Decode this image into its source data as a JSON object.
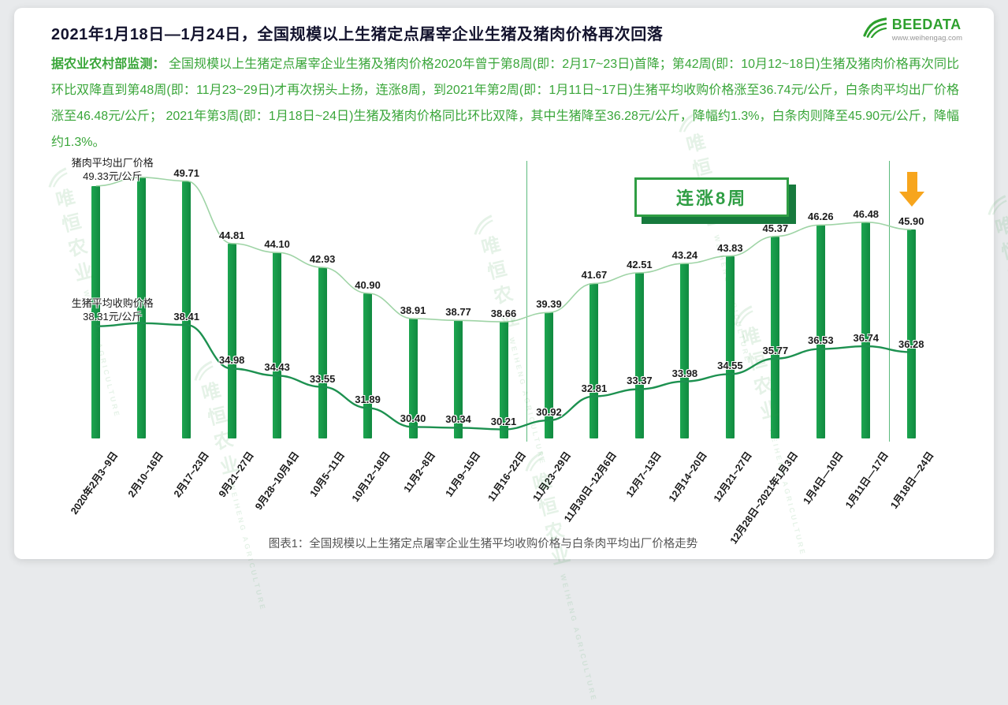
{
  "header": {
    "title": "2021年1月18日—1月24日，全国规模以上生猪定点屠宰企业生猪及猪肉价格再次回落",
    "logo": {
      "text": "BEEDATA",
      "url": "www.weihengag.com"
    }
  },
  "summary": {
    "lead": "据农业农村部监测： ",
    "body": "全国规模以上生猪定点屠宰企业生猪及猪肉价格2020年曾于第8周(即：2月17~23日)首降；第42周(即：10月12~18日)生猪及猪肉价格再次同比环比双降直到第48周(即：11月23~29日)才再次拐头上扬，连涨8周，到2021年第2周(即：1月11日~17日)生猪平均收购价格涨至36.74元/公斤，白条肉平均出厂价格涨至46.48元/公斤； 2021年第3周(即：1月18日~24日)生猪及猪肉价格同比环比双降，其中生猪降至36.28元/公斤，降幅约1.3%，白条肉则降至45.90元/公斤，降幅约1.3%。"
  },
  "watermark": {
    "cn": "唯恒农业",
    "en": "WEIHENG AGRICULTURE"
  },
  "colors": {
    "accent_green": "#2da02d",
    "text_green": "#3aa63a",
    "bar_green": "#169a47",
    "pork_line": "#9fd4a6",
    "hog_line": "#1d9150",
    "badge_green": "#2f9e44",
    "badge_shadow": "#177a3d",
    "arrow_orange": "#f7a51d",
    "title_dark": "#14142e"
  },
  "chart_data": {
    "type": "bar",
    "title": "全国规模以上生猪定点屠宰企业生猪平均收购价格与白条肉平均出厂价格走势",
    "caption": "图表1：全国规模以上生猪定点屠宰企业生猪平均收购价格与白条肉平均出厂价格走势",
    "annotation": "连涨8周",
    "unit": "元/公斤",
    "grid": false,
    "ylim": [
      29.5,
      50.8
    ],
    "xlabel_rotate_deg": -55,
    "rise_band_indices": [
      10,
      17
    ],
    "categories": [
      "2020年2月3~9日",
      "2月10~16日",
      "2月17~23日",
      "9月21~27日",
      "9月28~10月4日",
      "10月5~11日",
      "10月12~18日",
      "11月2~8日",
      "11月9~15日",
      "11月16~22日",
      "11月23~29日",
      "11月30日~12月6日",
      "12月7~13日",
      "12月14~20日",
      "12月21~27日",
      "12月28日~2021年1月3日",
      "1月4日—10日",
      "1月11日—17日",
      "1月18日—24日"
    ],
    "series": [
      {
        "name": "猪肉平均出厂价格",
        "render": "bar+line",
        "values": [
          49.33,
          50.0,
          49.71,
          44.81,
          44.1,
          42.93,
          40.9,
          38.91,
          38.77,
          38.66,
          39.39,
          41.67,
          42.51,
          43.24,
          43.83,
          45.37,
          46.26,
          46.48,
          45.9
        ],
        "point_labels": [
          "49.33元/公斤",
          "",
          "49.71",
          "44.81",
          "44.10",
          "42.93",
          "40.90",
          "38.91",
          "38.77",
          "38.66",
          "39.39",
          "41.67",
          "42.51",
          "43.24",
          "43.83",
          "45.37",
          "46.26",
          "46.48",
          "45.90"
        ]
      },
      {
        "name": "生猪平均收购价格",
        "render": "line",
        "values": [
          38.31,
          38.55,
          38.41,
          34.98,
          34.43,
          33.55,
          31.89,
          30.4,
          30.34,
          30.21,
          30.92,
          32.81,
          33.37,
          33.98,
          34.55,
          35.77,
          36.53,
          36.74,
          36.28
        ],
        "point_labels": [
          "38.31元/公斤",
          "",
          "38.41",
          "34.98",
          "34.43",
          "33.55",
          "31.89",
          "30.40",
          "30.34",
          "30.21",
          "30.92",
          "32.81",
          "33.37",
          "33.98",
          "34.55",
          "35.77",
          "36.53",
          "36.74",
          "36.28"
        ]
      }
    ]
  }
}
